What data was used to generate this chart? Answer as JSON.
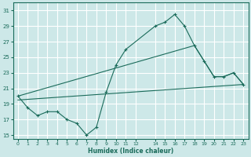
{
  "xlabel": "Humidex (Indice chaleur)",
  "bg_color": "#cde8e8",
  "grid_color": "#ffffff",
  "line_color": "#1a6b5a",
  "xlim": [
    -0.5,
    23.5
  ],
  "ylim": [
    14.5,
    32
  ],
  "xticks": [
    0,
    1,
    2,
    3,
    4,
    5,
    6,
    7,
    8,
    9,
    10,
    11,
    12,
    14,
    15,
    16,
    17,
    18,
    19,
    20,
    21,
    22,
    23
  ],
  "yticks": [
    15,
    17,
    19,
    21,
    23,
    25,
    27,
    29,
    31
  ],
  "line1_x": [
    0,
    1,
    2,
    3,
    4,
    5,
    6,
    7,
    8,
    9,
    10,
    11,
    14,
    15,
    16,
    17,
    18,
    19,
    20,
    21,
    22,
    23
  ],
  "line1_y": [
    20,
    18.5,
    17.5,
    18,
    18,
    17,
    16.5,
    15,
    16,
    20.5,
    24,
    26,
    29,
    29.5,
    30.5,
    29,
    26.5,
    24.5,
    22.5,
    22.5,
    23,
    21.5
  ],
  "line2_x": [
    0,
    23
  ],
  "line2_y": [
    19.5,
    21.5
  ],
  "line3_x": [
    0,
    18,
    19,
    20,
    21,
    22,
    23
  ],
  "line3_y": [
    20,
    26.5,
    24.5,
    22.5,
    22.5,
    23,
    21.5
  ]
}
